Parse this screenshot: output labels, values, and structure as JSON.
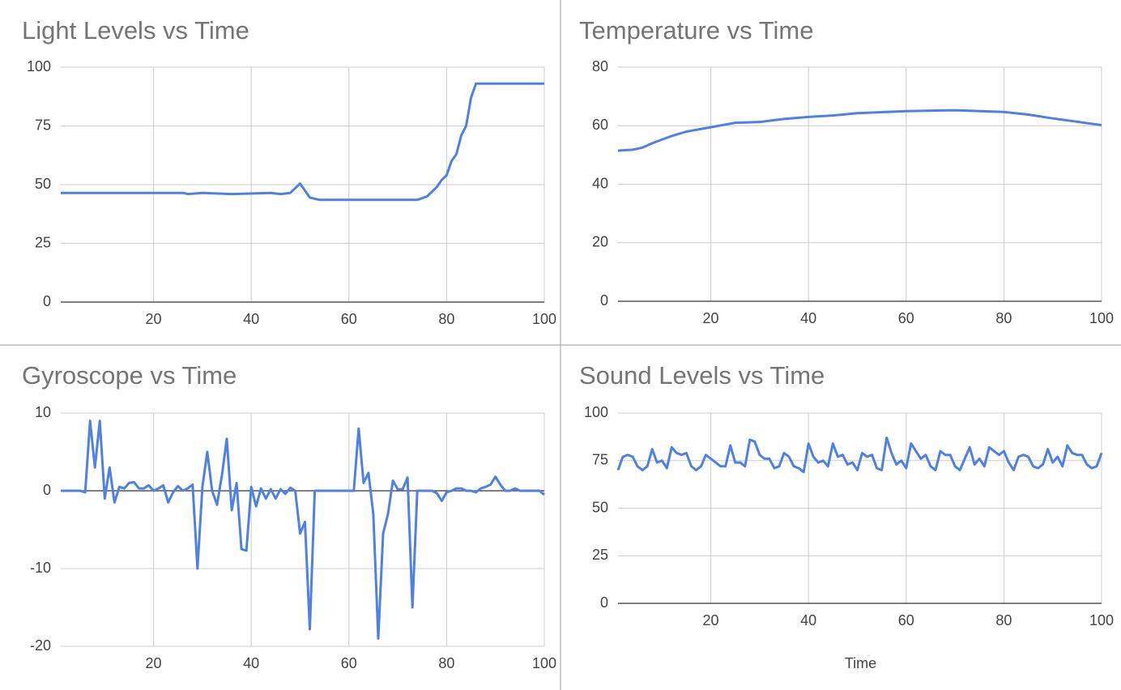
{
  "chart_data": [
    {
      "type": "line",
      "title": "Light Levels vs Time",
      "color": "#4f81e3",
      "grid": true,
      "x": [
        1,
        10,
        20,
        26,
        27,
        30,
        36,
        44,
        46,
        48,
        50,
        52,
        54,
        56,
        74,
        76,
        78,
        79,
        80,
        81,
        82,
        83,
        84,
        85,
        86,
        100
      ],
      "values": [
        46.5,
        46.5,
        46.5,
        46.5,
        46,
        46.5,
        46,
        46.5,
        46,
        46.5,
        50.5,
        44.5,
        43.5,
        43.5,
        43.5,
        45,
        49,
        52,
        54,
        60,
        63,
        71,
        75,
        87,
        93,
        93
      ],
      "xlim": [
        1,
        100
      ],
      "xticks": [
        20,
        40,
        60,
        80,
        100
      ],
      "ylim": [
        0,
        100
      ],
      "yticks": [
        0,
        25,
        50,
        75,
        100
      ]
    },
    {
      "type": "line",
      "title": "Temperature vs Time",
      "color": "#4f81e3",
      "grid": true,
      "x": [
        1,
        4,
        6,
        8,
        12,
        15,
        20,
        25,
        30,
        35,
        40,
        45,
        50,
        60,
        70,
        80,
        85,
        90,
        100
      ],
      "values": [
        51.5,
        51.8,
        52.5,
        54,
        56.5,
        58,
        59.5,
        61,
        61.3,
        62.3,
        63,
        63.5,
        64.3,
        65,
        65.3,
        64.7,
        63.8,
        62.5,
        60.2
      ],
      "xlim": [
        1,
        100
      ],
      "xticks": [
        20,
        40,
        60,
        80,
        100
      ],
      "ylim": [
        0,
        80
      ],
      "yticks": [
        0,
        20,
        40,
        60,
        80
      ]
    },
    {
      "type": "line",
      "title": "Gyroscope vs Time",
      "color": "#4f81e3",
      "grid": true,
      "x": [
        1,
        5,
        6,
        7,
        8,
        9,
        10,
        11,
        12,
        13,
        14,
        15,
        16,
        17,
        18,
        19,
        20,
        21,
        22,
        23,
        24,
        25,
        26,
        27,
        28,
        29,
        30,
        31,
        32,
        33,
        34,
        35,
        36,
        37,
        38,
        39,
        40,
        41,
        42,
        43,
        44,
        45,
        46,
        47,
        48,
        49,
        50,
        51,
        52,
        53,
        61,
        62,
        63,
        64,
        65,
        66,
        67,
        68,
        69,
        70,
        71,
        72,
        73,
        74,
        77,
        78,
        79,
        80,
        81,
        82,
        83,
        84,
        85,
        86,
        87,
        88,
        89,
        90,
        91,
        92,
        93,
        94,
        95,
        96,
        99,
        100
      ],
      "values": [
        0,
        0,
        -0.2,
        9,
        3,
        9,
        -1,
        3,
        -1.5,
        0.5,
        0.3,
        1,
        1.1,
        0.3,
        0.3,
        0.7,
        0,
        0.3,
        0.7,
        -1.5,
        -0.2,
        0.6,
        0,
        0.3,
        0.8,
        -10,
        0.5,
        5,
        0,
        -1.8,
        2,
        6.7,
        -2.5,
        1,
        -7.5,
        -7.7,
        0.5,
        -2,
        0.3,
        -1,
        0.2,
        -1,
        0.2,
        -0.4,
        0.4,
        0,
        -5.5,
        -4,
        -17.8,
        0,
        0,
        8,
        1,
        2.3,
        -3,
        -19,
        -5.5,
        -3,
        1.3,
        0.2,
        0.2,
        1.7,
        -15,
        0,
        0,
        -0.3,
        -1.3,
        -0.2,
        0,
        0.3,
        0.3,
        0,
        0,
        -0.2,
        0.3,
        0.5,
        0.8,
        1.8,
        0.8,
        0,
        0,
        0.3,
        0,
        0,
        0,
        -0.5
      ],
      "xlim": [
        1,
        100
      ],
      "xticks": [
        20,
        40,
        60,
        80,
        100
      ],
      "ylim": [
        -20,
        10
      ],
      "yticks": [
        -20,
        -10,
        0,
        10
      ]
    },
    {
      "type": "line",
      "title": "Sound Levels vs Time",
      "x_label": "Time",
      "color": "#4f81e3",
      "grid": true,
      "x": [
        1,
        2,
        3,
        4,
        5,
        6,
        7,
        8,
        9,
        10,
        11,
        12,
        13,
        14,
        15,
        16,
        17,
        18,
        19,
        20,
        21,
        22,
        23,
        24,
        25,
        26,
        27,
        28,
        29,
        30,
        31,
        32,
        33,
        34,
        35,
        36,
        37,
        38,
        39,
        40,
        41,
        42,
        43,
        44,
        45,
        46,
        47,
        48,
        49,
        50,
        51,
        52,
        53,
        54,
        55,
        56,
        57,
        58,
        59,
        60,
        61,
        62,
        63,
        64,
        65,
        66,
        67,
        68,
        69,
        70,
        71,
        72,
        73,
        74,
        75,
        76,
        77,
        78,
        79,
        80,
        81,
        82,
        83,
        84,
        85,
        86,
        87,
        88,
        89,
        90,
        91,
        92,
        93,
        94,
        95,
        96,
        97,
        98,
        99,
        100
      ],
      "values": [
        70,
        77,
        78,
        77,
        72,
        70,
        72,
        81,
        74,
        75,
        71,
        82,
        79,
        78,
        79,
        72,
        70,
        72,
        78,
        76,
        74,
        72,
        72,
        83,
        74,
        74,
        72,
        86,
        85,
        78,
        76,
        76,
        71,
        72,
        79,
        77,
        72,
        71,
        69,
        84,
        77,
        74,
        75,
        72,
        84,
        77,
        78,
        73,
        74,
        70,
        79,
        77,
        78,
        71,
        70,
        87,
        79,
        73,
        75,
        71,
        84,
        80,
        76,
        78,
        72,
        70,
        80,
        78,
        78,
        72,
        70,
        76,
        82,
        73,
        76,
        72,
        82,
        80,
        78,
        80,
        74,
        70,
        77,
        78,
        77,
        72,
        71,
        73,
        81,
        74,
        77,
        72,
        83,
        79,
        78,
        78,
        73,
        71,
        72,
        79
      ],
      "xlim": [
        1,
        100
      ],
      "xticks": [
        20,
        40,
        60,
        80,
        100
      ],
      "ylim": [
        0,
        100
      ],
      "yticks": [
        0,
        25,
        50,
        75,
        100
      ]
    }
  ]
}
